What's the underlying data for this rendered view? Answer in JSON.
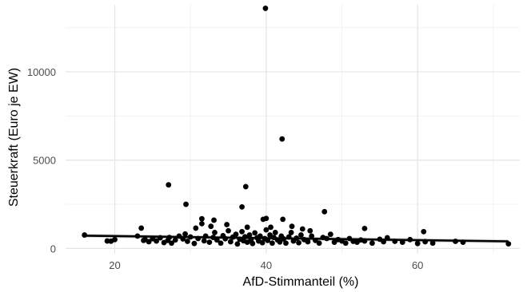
{
  "chart_data": {
    "type": "scatter",
    "title": "",
    "xlabel": "AfD-Stimmanteil (%)",
    "ylabel": "Steuerkraft (Euro je EW)",
    "xlim": [
      13.5,
      73.5
    ],
    "ylim": [
      -300,
      13800
    ],
    "x_ticks": [
      20,
      40,
      60
    ],
    "y_ticks": [
      0,
      5000,
      10000
    ],
    "x_tick_labels": [
      "20",
      "40",
      "60"
    ],
    "y_tick_labels": [
      "0",
      "5000",
      "10000"
    ],
    "grid": true,
    "legend": "none",
    "colors": {
      "points": "#000000",
      "trend_line": "#000000",
      "confidence_band": "#bdbdbd",
      "grid_major": "#e5e5e5",
      "grid_minor": "#f2f2f2",
      "tick_text": "#4d4d4d"
    },
    "trend": {
      "x": [
        16,
        72
      ],
      "y": [
        720,
        400
      ]
    },
    "points": {
      "x": [
        16,
        19,
        19.5,
        20,
        23,
        23.5,
        23.8,
        24,
        24.5,
        25,
        25.5,
        26,
        26.5,
        27,
        27.2,
        27.5,
        28,
        28.5,
        29,
        29.3,
        29.6,
        30,
        30.5,
        31,
        31.5,
        31.8,
        32,
        32.5,
        33,
        33.2,
        33.5,
        34,
        34.3,
        34.6,
        35,
        35.3,
        35.6,
        36,
        36.2,
        36.5,
        36.8,
        37,
        37.2,
        37.5,
        37.8,
        38,
        38.2,
        38.5,
        38.8,
        39,
        39.2,
        39.5,
        39.8,
        40,
        40.2,
        40.5,
        40.8,
        41,
        41.2,
        41.5,
        41.8,
        42,
        42.3,
        42.6,
        43,
        43.3,
        43.6,
        44,
        44.3,
        44.6,
        45,
        45.5,
        46,
        46.5,
        47,
        47.5,
        48,
        48.5,
        49,
        49.5,
        50,
        50.5,
        51,
        51.5,
        52,
        52.5,
        53,
        54,
        55,
        55.5,
        56,
        57,
        58,
        59,
        60,
        61,
        62,
        65,
        66,
        72,
        39.9,
        42.1,
        27.1,
        37.3,
        29.4,
        36.8,
        47.7,
        40.0,
        39.6,
        42.2,
        53.0,
        60.8,
        31.5,
        33.1,
        34.8,
        32.7,
        37.5,
        43.4,
        40.6,
        30.7,
        44.8,
        45.8
      ],
      "y": [
        760,
        420,
        410,
        500,
        700,
        1150,
        450,
        500,
        380,
        550,
        420,
        600,
        330,
        450,
        620,
        300,
        480,
        700,
        540,
        820,
        400,
        650,
        280,
        560,
        1400,
        430,
        700,
        350,
        620,
        900,
        480,
        300,
        720,
        550,
        1000,
        380,
        640,
        800,
        250,
        520,
        950,
        430,
        660,
        350,
        760,
        500,
        280,
        880,
        600,
        420,
        700,
        320,
        560,
        1050,
        450,
        760,
        300,
        620,
        900,
        480,
        360,
        700,
        540,
        300,
        650,
        900,
        420,
        580,
        320,
        760,
        500,
        380,
        700,
        450,
        300,
        620,
        560,
        800,
        350,
        500,
        420,
        300,
        560,
        400,
        350,
        480,
        420,
        300,
        520,
        380,
        600,
        400,
        350,
        500,
        280,
        380,
        300,
        400,
        350,
        260,
        13600,
        6200,
        3600,
        3500,
        2500,
        2350,
        2080,
        1700,
        1650,
        1650,
        1130,
        950,
        1680,
        1600,
        1350,
        1250,
        1200,
        1250,
        1200,
        1150,
        1100,
        1000
      ]
    }
  }
}
